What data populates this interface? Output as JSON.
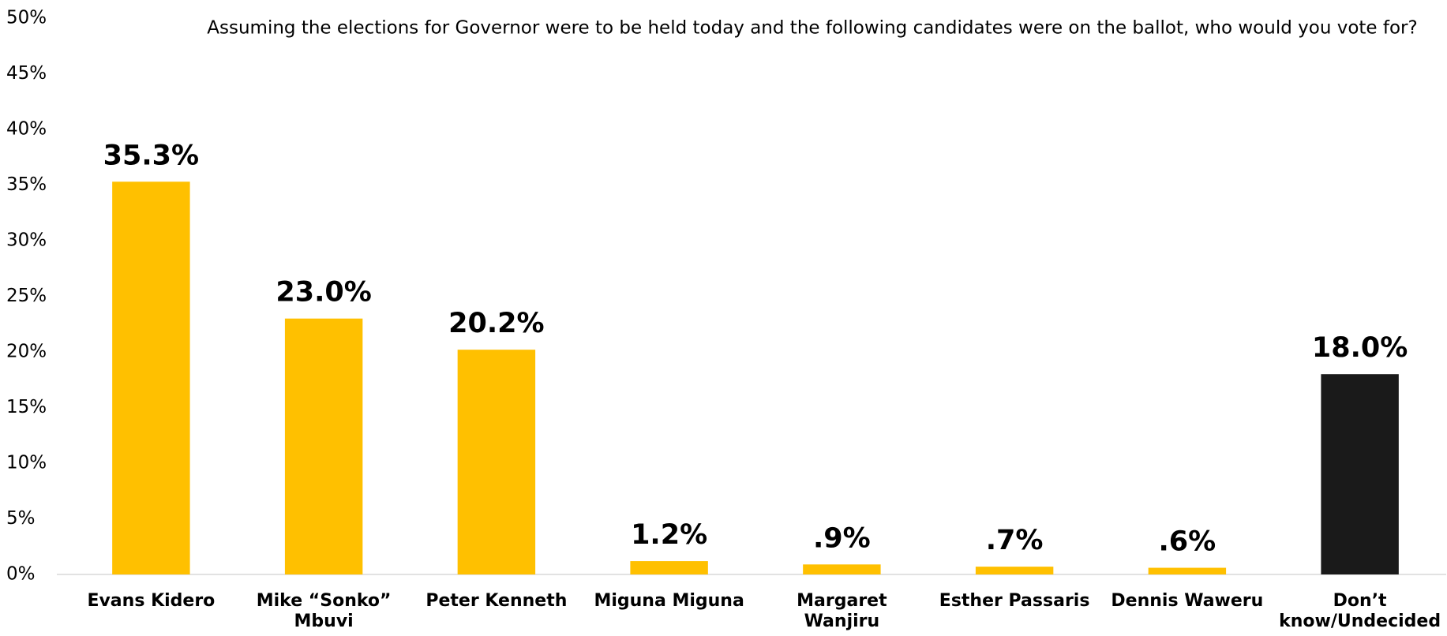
{
  "chart_data": {
    "type": "bar",
    "title": "Assuming the elections for Governor were to be held today and the following candidates were on the ballot, who would you vote for?",
    "categories": [
      "Evans Kidero",
      [
        "Mike “Sonko”",
        "Mbuvi"
      ],
      "Peter Kenneth",
      "Miguna Miguna",
      [
        "Margaret",
        "Wanjiru"
      ],
      "Esther Passaris",
      "Dennis Waweru",
      [
        "Don’t",
        "know/Undecided"
      ]
    ],
    "values": [
      35.3,
      23.0,
      20.2,
      1.2,
      0.9,
      0.7,
      0.6,
      18.0
    ],
    "value_labels": [
      "35.3%",
      "23.0%",
      "20.2%",
      "1.2%",
      ".9%",
      ".7%",
      ".6%",
      "18.0%"
    ],
    "colors": [
      "#FFC000",
      "#FFC000",
      "#FFC000",
      "#FFC000",
      "#FFC000",
      "#FFC000",
      "#FFC000",
      "#1A1A1A"
    ],
    "ylim": [
      0,
      50
    ],
    "yticks": [
      {
        "value": 0,
        "label": "0%"
      },
      {
        "value": 5,
        "label": "5%"
      },
      {
        "value": 10,
        "label": "10%"
      },
      {
        "value": 15,
        "label": "15%"
      },
      {
        "value": 20,
        "label": "20%"
      },
      {
        "value": 25,
        "label": "25%"
      },
      {
        "value": 30,
        "label": "30%"
      },
      {
        "value": 35,
        "label": "35%"
      },
      {
        "value": 40,
        "label": "40%"
      },
      {
        "value": 45,
        "label": "45%"
      },
      {
        "value": 50,
        "label": "50%"
      }
    ],
    "grid": false
  }
}
